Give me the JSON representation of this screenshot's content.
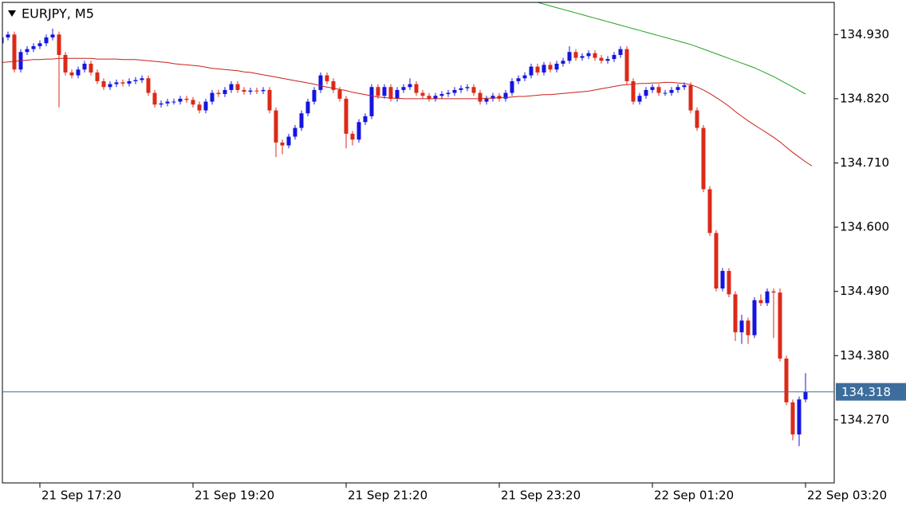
{
  "chart_data": {
    "type": "candlestick",
    "title": "EURJPY, M5",
    "up_color": "#1515e0",
    "down_color": "#dc2a18",
    "xlim": [
      0.125,
      130.5
    ],
    "ylim": [
      134.162,
      134.985
    ],
    "yticks": [
      {
        "value": 134.93,
        "label": "134.930"
      },
      {
        "value": 134.82,
        "label": "134.820"
      },
      {
        "value": 134.71,
        "label": "134.710"
      },
      {
        "value": 134.6,
        "label": "134.600"
      },
      {
        "value": 134.49,
        "label": "134.490"
      },
      {
        "value": 134.38,
        "label": "134.380"
      },
      {
        "value": 134.27,
        "label": "134.270"
      }
    ],
    "xticks": [
      {
        "value": 6,
        "label": "21 Sep 17:20"
      },
      {
        "value": 30,
        "label": "21 Sep 19:20"
      },
      {
        "value": 54,
        "label": "21 Sep 21:20"
      },
      {
        "value": 78,
        "label": "21 Sep 23:20"
      },
      {
        "value": 102,
        "label": "22 Sep 01:20"
      },
      {
        "value": 126,
        "label": "22 Sep 03:20"
      }
    ],
    "current_price": 134.318,
    "current_price_color": "#3d6d9c",
    "open": [
      134.915,
      134.925,
      134.93,
      134.87,
      134.9,
      134.905,
      134.91,
      134.915,
      134.925,
      134.93,
      134.895,
      134.865,
      134.86,
      134.87,
      134.88,
      134.865,
      134.85,
      134.84,
      134.845,
      134.848,
      134.846,
      134.85,
      134.852,
      134.855,
      134.83,
      134.81,
      134.812,
      134.815,
      134.815,
      134.82,
      134.818,
      134.81,
      134.8,
      134.815,
      134.83,
      134.828,
      134.835,
      134.845,
      134.835,
      134.832,
      134.834,
      134.833,
      134.835,
      134.8,
      134.745,
      134.74,
      134.755,
      134.77,
      134.795,
      134.815,
      134.835,
      134.86,
      134.85,
      134.835,
      134.82,
      134.76,
      134.75,
      134.78,
      134.79,
      134.84,
      134.825,
      134.84,
      134.82,
      134.835,
      134.84,
      134.845,
      134.83,
      134.825,
      134.82,
      134.825,
      134.828,
      134.83,
      134.835,
      134.838,
      134.84,
      134.83,
      134.815,
      134.82,
      134.825,
      134.82,
      134.83,
      134.85,
      134.855,
      134.86,
      134.875,
      134.865,
      134.878,
      134.87,
      134.88,
      134.885,
      134.9,
      134.89,
      134.893,
      134.898,
      134.89,
      134.885,
      134.888,
      134.895,
      134.905,
      134.85,
      134.815,
      134.825,
      134.835,
      134.84,
      134.83,
      134.83,
      134.835,
      134.84,
      134.843,
      134.8,
      134.77,
      134.665,
      134.59,
      134.495,
      134.525,
      134.485,
      134.42,
      134.44,
      134.415,
      134.475,
      134.47,
      134.49,
      134.488,
      134.375,
      134.3,
      134.245,
      134.305
    ],
    "high": [
      134.93,
      134.935,
      134.935,
      134.905,
      134.91,
      134.915,
      134.92,
      134.93,
      134.94,
      134.935,
      134.9,
      134.87,
      134.875,
      134.885,
      134.885,
      134.87,
      134.855,
      134.85,
      134.853,
      134.853,
      134.855,
      134.857,
      134.86,
      134.86,
      134.835,
      134.817,
      134.82,
      134.82,
      134.825,
      134.825,
      134.823,
      134.815,
      134.82,
      134.835,
      134.835,
      134.84,
      134.85,
      134.85,
      134.84,
      134.839,
      134.839,
      134.84,
      134.84,
      134.805,
      134.75,
      134.76,
      134.775,
      134.8,
      134.82,
      134.84,
      134.865,
      134.865,
      134.855,
      134.84,
      134.825,
      134.765,
      134.785,
      134.795,
      134.845,
      134.845,
      134.845,
      134.845,
      134.84,
      134.845,
      134.855,
      134.85,
      134.835,
      134.83,
      134.83,
      134.833,
      134.835,
      134.84,
      134.843,
      134.845,
      134.845,
      134.835,
      134.825,
      134.83,
      134.83,
      134.835,
      134.855,
      134.86,
      134.865,
      134.88,
      134.88,
      134.883,
      134.883,
      134.885,
      134.89,
      134.91,
      134.905,
      134.898,
      134.903,
      134.903,
      134.895,
      134.893,
      134.9,
      134.91,
      134.91,
      134.855,
      134.83,
      134.84,
      134.845,
      134.845,
      134.835,
      134.84,
      134.845,
      134.848,
      134.848,
      134.805,
      134.775,
      134.67,
      134.595,
      134.53,
      134.53,
      134.49,
      134.45,
      134.445,
      134.48,
      134.485,
      134.495,
      134.495,
      134.495,
      134.38,
      134.305,
      134.31,
      134.35
    ],
    "low": [
      134.91,
      134.92,
      134.865,
      134.865,
      134.895,
      134.9,
      134.905,
      134.91,
      134.92,
      134.805,
      134.86,
      134.855,
      134.855,
      134.865,
      134.86,
      134.845,
      134.835,
      134.835,
      134.84,
      134.841,
      134.841,
      134.845,
      134.847,
      134.825,
      134.805,
      134.805,
      134.807,
      134.81,
      134.81,
      134.813,
      134.805,
      134.795,
      134.795,
      134.81,
      134.823,
      134.823,
      134.83,
      134.83,
      134.827,
      134.827,
      134.828,
      134.828,
      134.795,
      134.72,
      134.725,
      134.735,
      134.75,
      134.765,
      134.79,
      134.81,
      134.83,
      134.845,
      134.83,
      134.815,
      134.735,
      134.74,
      134.745,
      134.775,
      134.785,
      134.82,
      134.82,
      134.815,
      134.815,
      134.83,
      134.835,
      134.825,
      134.82,
      134.815,
      134.815,
      134.82,
      134.823,
      134.825,
      134.83,
      134.833,
      134.825,
      134.81,
      134.81,
      134.815,
      134.815,
      134.815,
      134.825,
      134.845,
      134.85,
      134.855,
      134.86,
      134.86,
      134.865,
      134.865,
      134.875,
      134.88,
      134.885,
      134.885,
      134.888,
      134.885,
      134.88,
      134.88,
      134.883,
      134.89,
      134.845,
      134.81,
      134.81,
      134.82,
      134.83,
      134.825,
      134.825,
      134.825,
      134.83,
      134.835,
      134.795,
      134.765,
      134.66,
      134.585,
      134.49,
      134.49,
      134.48,
      134.405,
      134.4,
      134.4,
      134.41,
      134.465,
      134.465,
      134.41,
      134.37,
      134.295,
      134.235,
      134.225,
      134.3
    ],
    "close": [
      134.925,
      134.93,
      134.87,
      134.9,
      134.905,
      134.91,
      134.915,
      134.925,
      134.93,
      134.895,
      134.865,
      134.86,
      134.87,
      134.88,
      134.865,
      134.85,
      134.84,
      134.845,
      134.848,
      134.846,
      134.85,
      134.852,
      134.855,
      134.83,
      134.81,
      134.812,
      134.815,
      134.815,
      134.82,
      134.818,
      134.81,
      134.8,
      134.815,
      134.83,
      134.828,
      134.835,
      134.845,
      134.835,
      134.832,
      134.834,
      134.833,
      134.835,
      134.8,
      134.745,
      134.74,
      134.755,
      134.77,
      134.795,
      134.815,
      134.835,
      134.86,
      134.85,
      134.835,
      134.82,
      134.76,
      134.75,
      134.78,
      134.79,
      134.84,
      134.825,
      134.84,
      134.82,
      134.835,
      134.84,
      134.845,
      134.83,
      134.825,
      134.82,
      134.825,
      134.828,
      134.83,
      134.835,
      134.838,
      134.84,
      134.83,
      134.815,
      134.82,
      134.825,
      134.82,
      134.83,
      134.85,
      134.855,
      134.86,
      134.875,
      134.865,
      134.878,
      134.87,
      134.88,
      134.885,
      134.9,
      134.89,
      134.893,
      134.898,
      134.89,
      134.885,
      134.888,
      134.895,
      134.905,
      134.85,
      134.815,
      134.825,
      134.835,
      134.84,
      134.83,
      134.83,
      134.835,
      134.84,
      134.843,
      134.8,
      134.77,
      134.665,
      134.59,
      134.495,
      134.525,
      134.485,
      134.42,
      134.44,
      134.415,
      134.475,
      134.47,
      134.49,
      134.488,
      134.375,
      134.3,
      134.245,
      134.305,
      134.318
    ],
    "lines": [
      {
        "color": "#c8201a",
        "values": [
          134.882,
          134.883,
          134.884,
          134.885,
          134.886,
          134.887,
          134.887,
          134.888,
          134.888,
          134.889,
          134.889,
          134.889,
          134.889,
          134.889,
          134.889,
          134.888,
          134.888,
          134.888,
          134.888,
          134.887,
          134.887,
          134.887,
          134.886,
          134.885,
          134.884,
          134.883,
          134.882,
          134.88,
          134.879,
          134.878,
          134.877,
          134.876,
          134.874,
          134.872,
          134.871,
          134.87,
          134.869,
          134.868,
          134.866,
          134.865,
          134.863,
          134.861,
          134.859,
          134.857,
          134.855,
          134.853,
          134.851,
          134.849,
          134.847,
          134.845,
          134.842,
          134.84,
          134.838,
          134.836,
          134.834,
          134.831,
          134.829,
          134.827,
          134.825,
          134.823,
          134.822,
          134.821,
          134.821,
          134.82,
          134.82,
          134.82,
          134.82,
          134.82,
          134.82,
          134.82,
          134.82,
          134.82,
          134.82,
          134.82,
          134.82,
          134.82,
          134.821,
          134.821,
          134.822,
          134.822,
          134.823,
          134.824,
          134.824,
          134.825,
          134.826,
          134.827,
          134.827,
          134.828,
          134.829,
          134.83,
          134.831,
          134.832,
          134.833,
          134.835,
          134.837,
          134.839,
          134.841,
          134.843,
          134.844,
          134.845,
          134.846,
          134.846,
          134.847,
          134.847,
          134.848,
          134.848,
          134.847,
          134.846,
          134.844,
          134.84,
          134.835,
          134.829,
          134.822,
          134.815,
          134.807,
          134.798,
          134.79,
          134.782,
          134.775,
          134.768,
          134.761,
          134.754,
          134.746,
          134.737,
          134.728,
          134.72,
          134.712,
          134.705
        ]
      },
      {
        "color": "#22a022",
        "values": [
          null,
          null,
          null,
          null,
          null,
          null,
          null,
          null,
          null,
          null,
          null,
          null,
          null,
          null,
          null,
          null,
          null,
          null,
          null,
          null,
          null,
          null,
          null,
          null,
          null,
          null,
          null,
          null,
          null,
          null,
          null,
          null,
          null,
          null,
          null,
          null,
          null,
          null,
          null,
          null,
          null,
          null,
          null,
          null,
          null,
          null,
          null,
          null,
          null,
          null,
          null,
          null,
          null,
          null,
          null,
          null,
          null,
          null,
          null,
          null,
          null,
          null,
          null,
          null,
          null,
          null,
          null,
          null,
          null,
          null,
          null,
          null,
          null,
          null,
          null,
          null,
          null,
          null,
          null,
          null,
          null,
          null,
          null,
          null,
          134.985,
          134.982,
          134.979,
          134.976,
          134.973,
          134.97,
          134.967,
          134.964,
          134.961,
          134.958,
          134.955,
          134.952,
          134.949,
          134.946,
          134.943,
          134.94,
          134.937,
          134.934,
          134.931,
          134.928,
          134.925,
          134.922,
          134.919,
          134.916,
          134.913,
          134.909,
          134.905,
          134.901,
          134.897,
          134.893,
          134.889,
          134.885,
          134.881,
          134.877,
          134.873,
          134.868,
          134.863,
          134.858,
          134.852,
          134.846,
          134.84,
          134.834,
          134.828
        ]
      }
    ]
  }
}
